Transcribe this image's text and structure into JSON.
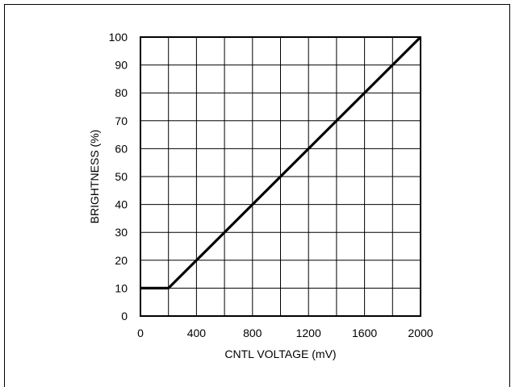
{
  "chart_data": {
    "type": "line",
    "title": "",
    "xlabel": "CNTL VOLTAGE (mV)",
    "ylabel": "BRIGHTNESS (%)",
    "xlim": [
      0,
      2000
    ],
    "ylim": [
      0,
      100
    ],
    "xticks": [
      0,
      400,
      800,
      1200,
      1600,
      2000
    ],
    "yticks": [
      0,
      10,
      20,
      30,
      40,
      50,
      60,
      70,
      80,
      90,
      100
    ],
    "x_grid_step": 200,
    "y_grid_step": 10,
    "grid": true,
    "series": [
      {
        "x": [
          0,
          200,
          2000
        ],
        "y": [
          10,
          10,
          100
        ]
      }
    ],
    "colors": {
      "line": "#000000",
      "grid": "#000000"
    }
  }
}
